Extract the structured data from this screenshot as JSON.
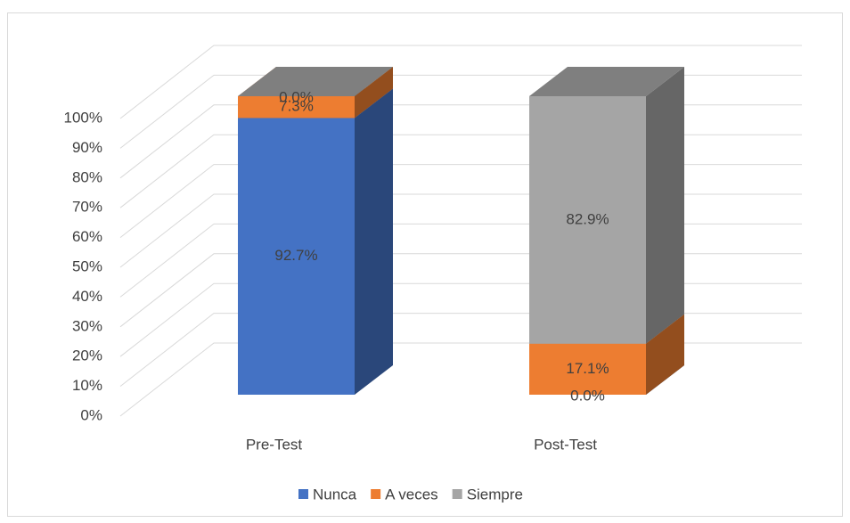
{
  "chart_data": {
    "type": "bar3d_stacked",
    "categories": [
      "Pre-Test",
      "Post-Test"
    ],
    "series": [
      {
        "name": "Nunca",
        "color": "#4472c4",
        "values": [
          92.7,
          0.0
        ],
        "value_labels": [
          "92.7%",
          "0.0%"
        ]
      },
      {
        "name": "A veces",
        "color": "#ed7d31",
        "values": [
          7.3,
          17.1
        ],
        "value_labels": [
          "7.3%",
          "17.1%"
        ]
      },
      {
        "name": "Siempre",
        "color": "#a5a5a5",
        "values": [
          0.0,
          82.9
        ],
        "value_labels": [
          "0.0%",
          "82.9%"
        ]
      }
    ],
    "ylim": [
      0,
      100
    ],
    "yticks": [
      {
        "value": 0,
        "label": "0%"
      },
      {
        "value": 10,
        "label": "10%"
      },
      {
        "value": 20,
        "label": "20%"
      },
      {
        "value": 30,
        "label": "30%"
      },
      {
        "value": 40,
        "label": "40%"
      },
      {
        "value": 50,
        "label": "50%"
      },
      {
        "value": 60,
        "label": "60%"
      },
      {
        "value": 70,
        "label": "70%"
      },
      {
        "value": 80,
        "label": "80%"
      },
      {
        "value": 90,
        "label": "90%"
      },
      {
        "value": 100,
        "label": "100%"
      }
    ],
    "grid": true,
    "legend": "bottom"
  }
}
